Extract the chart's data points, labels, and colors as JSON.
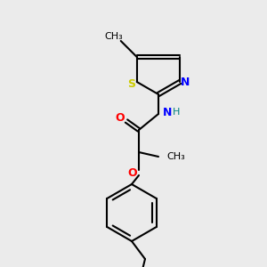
{
  "background_color": "#ebebeb",
  "bond_color": "#000000",
  "atom_colors": {
    "S": "#cccc00",
    "N": "#0000ff",
    "O": "#ff0000",
    "H": "#008080",
    "C": "#000000"
  },
  "font_size": 9,
  "line_width": 1.5
}
